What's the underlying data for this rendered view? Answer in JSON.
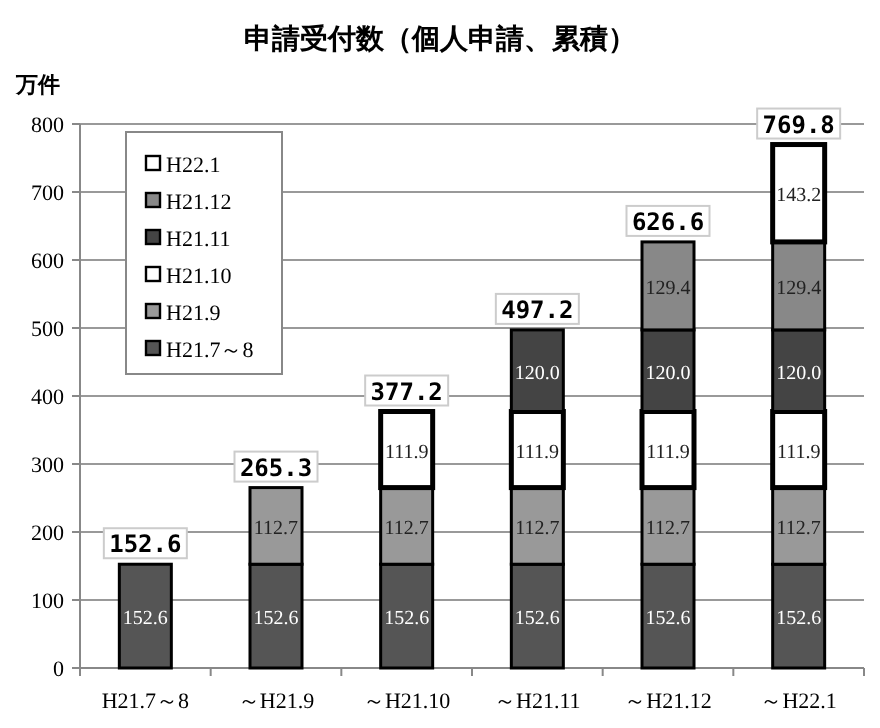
{
  "chart_data": {
    "type": "bar",
    "title": "申請受付数（個人申請、累積）",
    "ylabel": "万件",
    "categories": [
      "H21.7～8",
      "～H21.9",
      "～H21.10",
      "～H21.11",
      "～H21.12",
      "～H22.1"
    ],
    "stacked": true,
    "ylim": [
      0,
      800
    ],
    "yticks": [
      0,
      100,
      200,
      300,
      400,
      500,
      600,
      700,
      800
    ],
    "grid": "y",
    "legend": "top left",
    "totals": [
      "152.6",
      "265.3",
      "377.2",
      "497.2",
      "626.6",
      "769.8"
    ],
    "series": [
      {
        "name": "H21.7～8",
        "color": "#555555",
        "values": [
          152.6,
          152.6,
          152.6,
          152.6,
          152.6,
          152.6
        ],
        "value_labels": [
          "152.6",
          "152.6",
          "152.6",
          "152.6",
          "152.6",
          "152.6"
        ]
      },
      {
        "name": "H21.9",
        "color": "#999999",
        "values": [
          null,
          112.7,
          112.7,
          112.7,
          112.7,
          112.7
        ],
        "value_labels": [
          null,
          "112.7",
          "112.7",
          "112.7",
          "112.7",
          "112.7"
        ]
      },
      {
        "name": "H21.10",
        "color": "#ffffff",
        "values": [
          null,
          null,
          111.9,
          111.9,
          111.9,
          111.9
        ],
        "value_labels": [
          null,
          null,
          "111.9",
          "111.9",
          "111.9",
          "111.9"
        ]
      },
      {
        "name": "H21.11",
        "color": "#444444",
        "values": [
          null,
          null,
          null,
          120.0,
          120.0,
          120.0
        ],
        "value_labels": [
          null,
          null,
          null,
          "120.0",
          "120.0",
          "120.0"
        ]
      },
      {
        "name": "H21.12",
        "color": "#888888",
        "values": [
          null,
          null,
          null,
          null,
          129.4,
          129.4
        ],
        "value_labels": [
          null,
          null,
          null,
          null,
          "129.4",
          "129.4"
        ]
      },
      {
        "name": "H22.1",
        "color": "#ffffff",
        "values": [
          null,
          null,
          null,
          null,
          null,
          143.2
        ],
        "value_labels": [
          null,
          null,
          null,
          null,
          null,
          "143.2"
        ]
      }
    ]
  }
}
